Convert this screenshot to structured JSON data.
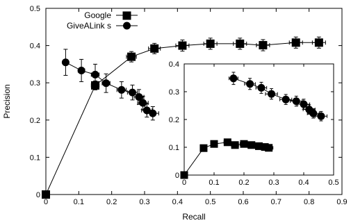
{
  "chart_data": [
    {
      "id": "main",
      "type": "line",
      "title": "",
      "xlabel": "Recall",
      "ylabel": "Precision",
      "xlim": [
        0,
        0.9
      ],
      "ylim": [
        0,
        0.5
      ],
      "xticks": [
        "0",
        "0.1",
        "0.2",
        "0.3",
        "0.4",
        "0.5",
        "0.6",
        "0.7",
        "0.8",
        "0.9"
      ],
      "yticks": [
        "0",
        "0.1",
        "0.2",
        "0.3",
        "0.4",
        "0.5"
      ],
      "legend": {
        "placement": "top-left"
      },
      "grid": false,
      "series": [
        {
          "name": "Google",
          "marker": "square",
          "color": "#000000",
          "points": [
            {
              "x": 0.0,
              "y": 0.0,
              "xerr": 0.0,
              "yerr": 0.0
            },
            {
              "x": 0.15,
              "y": 0.293,
              "xerr": 0.012,
              "yerr": 0.012
            },
            {
              "x": 0.26,
              "y": 0.37,
              "xerr": 0.015,
              "yerr": 0.014
            },
            {
              "x": 0.33,
              "y": 0.392,
              "xerr": 0.018,
              "yerr": 0.014
            },
            {
              "x": 0.415,
              "y": 0.4,
              "xerr": 0.02,
              "yerr": 0.015
            },
            {
              "x": 0.5,
              "y": 0.405,
              "xerr": 0.02,
              "yerr": 0.015
            },
            {
              "x": 0.59,
              "y": 0.405,
              "xerr": 0.02,
              "yerr": 0.015
            },
            {
              "x": 0.66,
              "y": 0.401,
              "xerr": 0.02,
              "yerr": 0.015
            },
            {
              "x": 0.76,
              "y": 0.408,
              "xerr": 0.02,
              "yerr": 0.015
            },
            {
              "x": 0.83,
              "y": 0.408,
              "xerr": 0.02,
              "yerr": 0.015
            }
          ]
        },
        {
          "name": "GiveALink s",
          "marker": "circle",
          "color": "#000000",
          "points": [
            {
              "x": 0.06,
              "y": 0.355,
              "xerr": 0.008,
              "yerr": 0.035
            },
            {
              "x": 0.108,
              "y": 0.333,
              "xerr": 0.01,
              "yerr": 0.03
            },
            {
              "x": 0.15,
              "y": 0.322,
              "xerr": 0.012,
              "yerr": 0.028
            },
            {
              "x": 0.183,
              "y": 0.299,
              "xerr": 0.012,
              "yerr": 0.025
            },
            {
              "x": 0.23,
              "y": 0.281,
              "xerr": 0.014,
              "yerr": 0.022
            },
            {
              "x": 0.263,
              "y": 0.274,
              "xerr": 0.015,
              "yerr": 0.02
            },
            {
              "x": 0.283,
              "y": 0.262,
              "xerr": 0.015,
              "yerr": 0.02
            },
            {
              "x": 0.295,
              "y": 0.246,
              "xerr": 0.016,
              "yerr": 0.018
            },
            {
              "x": 0.307,
              "y": 0.226,
              "xerr": 0.016,
              "yerr": 0.018
            },
            {
              "x": 0.325,
              "y": 0.218,
              "xerr": 0.018,
              "yerr": 0.018
            }
          ]
        }
      ]
    },
    {
      "id": "inset",
      "type": "line",
      "title": "",
      "xlabel": "",
      "ylabel": "",
      "xlim": [
        0,
        0.5
      ],
      "ylim": [
        0,
        0.4
      ],
      "xticks": [
        "0",
        "0.1",
        "0.2",
        "0.3",
        "0.4",
        "0.5"
      ],
      "yticks": [
        "0",
        "0.1",
        "0.2",
        "0.3",
        "0.4"
      ],
      "grid": false,
      "series": [
        {
          "name": "Google",
          "marker": "square",
          "color": "#000000",
          "connect_origin": true,
          "points": [
            {
              "x": 0.0,
              "y": 0.0,
              "xerr": 0.0,
              "yerr": 0.0
            },
            {
              "x": 0.065,
              "y": 0.097,
              "xerr": 0.008,
              "yerr": 0.006
            },
            {
              "x": 0.1,
              "y": 0.112,
              "xerr": 0.01,
              "yerr": 0.007
            },
            {
              "x": 0.145,
              "y": 0.118,
              "xerr": 0.012,
              "yerr": 0.007
            },
            {
              "x": 0.17,
              "y": 0.108,
              "xerr": 0.012,
              "yerr": 0.007
            },
            {
              "x": 0.2,
              "y": 0.112,
              "xerr": 0.013,
              "yerr": 0.007
            },
            {
              "x": 0.225,
              "y": 0.108,
              "xerr": 0.013,
              "yerr": 0.007
            },
            {
              "x": 0.25,
              "y": 0.104,
              "xerr": 0.013,
              "yerr": 0.007
            },
            {
              "x": 0.27,
              "y": 0.101,
              "xerr": 0.014,
              "yerr": 0.007
            },
            {
              "x": 0.283,
              "y": 0.098,
              "xerr": 0.014,
              "yerr": 0.007
            }
          ]
        },
        {
          "name": "GiveALink s",
          "marker": "circle",
          "color": "#000000",
          "points": [
            {
              "x": 0.165,
              "y": 0.348,
              "xerr": 0.015,
              "yerr": 0.022
            },
            {
              "x": 0.22,
              "y": 0.328,
              "xerr": 0.018,
              "yerr": 0.02
            },
            {
              "x": 0.258,
              "y": 0.314,
              "xerr": 0.018,
              "yerr": 0.02
            },
            {
              "x": 0.292,
              "y": 0.292,
              "xerr": 0.02,
              "yerr": 0.019
            },
            {
              "x": 0.34,
              "y": 0.272,
              "xerr": 0.02,
              "yerr": 0.018
            },
            {
              "x": 0.375,
              "y": 0.266,
              "xerr": 0.02,
              "yerr": 0.018
            },
            {
              "x": 0.4,
              "y": 0.255,
              "xerr": 0.02,
              "yerr": 0.018
            },
            {
              "x": 0.418,
              "y": 0.236,
              "xerr": 0.02,
              "yerr": 0.017
            },
            {
              "x": 0.432,
              "y": 0.222,
              "xerr": 0.02,
              "yerr": 0.017
            },
            {
              "x": 0.458,
              "y": 0.212,
              "xerr": 0.02,
              "yerr": 0.017
            }
          ]
        }
      ]
    }
  ]
}
